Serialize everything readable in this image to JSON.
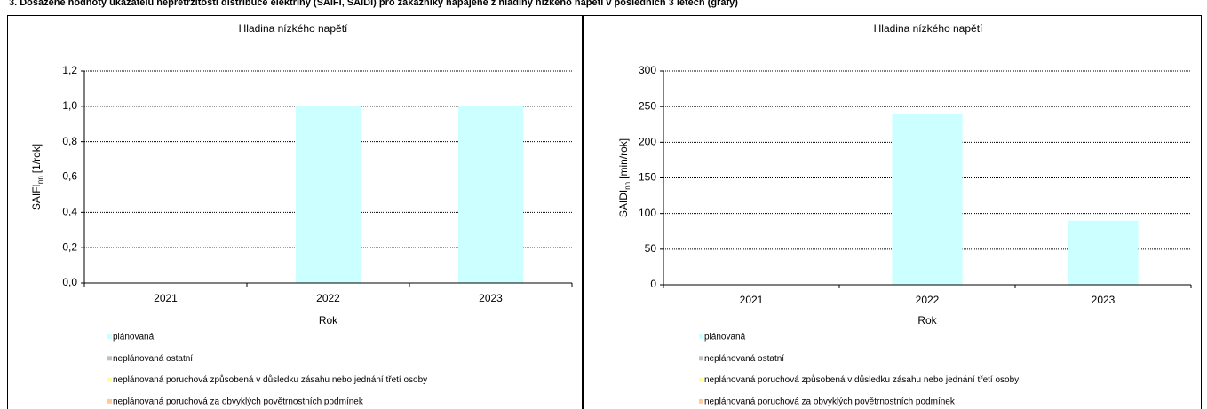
{
  "heading": "3. Dosažené hodnoty ukazatelů nepřetržitosti distribuce elektřiny (SAIFI, SAIDI) pro zákazníky napájené z hladiny nízkého napětí v posledních 3 letech (grafy)",
  "chart_data": [
    {
      "type": "bar",
      "stacked": true,
      "grid": true,
      "title": "Hladina nízkého napětí",
      "x_label": "Rok",
      "y_label": {
        "main": "SAIFI",
        "sub": "nn",
        "unit": "[1/rok]"
      },
      "categories": [
        "2021",
        "2022",
        "2023"
      ],
      "ylim": [
        0,
        1.2
      ],
      "yticks": [
        {
          "value": 0,
          "label": "0,0"
        },
        {
          "value": 0.2,
          "label": "0,2"
        },
        {
          "value": 0.4,
          "label": "0,4"
        },
        {
          "value": 0.6,
          "label": "0,6"
        },
        {
          "value": 0.8,
          "label": "0,8"
        },
        {
          "value": 1,
          "label": "1,0"
        },
        {
          "value": 1.2,
          "label": "1,2"
        }
      ],
      "series": [
        {
          "name": "plánovaná",
          "color": "#ccffff",
          "values": [
            0,
            1,
            1
          ]
        },
        {
          "name": "neplánovaná ostatní",
          "color": "#c0c0c0",
          "values": [
            0,
            0,
            0
          ]
        },
        {
          "name": "neplánovaná poruchová způsobená v důsledku zásahu nebo jednání třetí osoby",
          "color": "#ffff99",
          "values": [
            0,
            0,
            0
          ]
        },
        {
          "name": "neplánovaná poruchová za obvyklých povětrnostních podmínek",
          "color": "#ffcc99",
          "values": [
            0,
            0,
            0
          ]
        }
      ]
    },
    {
      "type": "bar",
      "stacked": true,
      "grid": true,
      "title": "Hladina nízkého napětí",
      "x_label": "Rok",
      "y_label": {
        "main": "SAIDI",
        "sub": "nn",
        "unit": "[min/rok]"
      },
      "categories": [
        "2021",
        "2022",
        "2023"
      ],
      "ylim": [
        0,
        300
      ],
      "yticks": [
        0,
        50,
        100,
        150,
        200,
        250,
        300
      ],
      "series": [
        {
          "name": "plánovaná",
          "color": "#ccffff",
          "values": [
            0,
            240,
            90
          ]
        },
        {
          "name": "neplánovaná ostatní",
          "color": "#c0c0c0",
          "values": [
            0,
            0,
            0
          ]
        },
        {
          "name": "neplánovaná poruchová způsobená v důsledku zásahu nebo jednání třetí osoby",
          "color": "#ffff99",
          "values": [
            0,
            0,
            0
          ]
        },
        {
          "name": "neplánovaná poruchová za obvyklých povětrnostních podmínek",
          "color": "#ffcc99",
          "values": [
            0,
            0,
            0
          ]
        }
      ]
    }
  ]
}
